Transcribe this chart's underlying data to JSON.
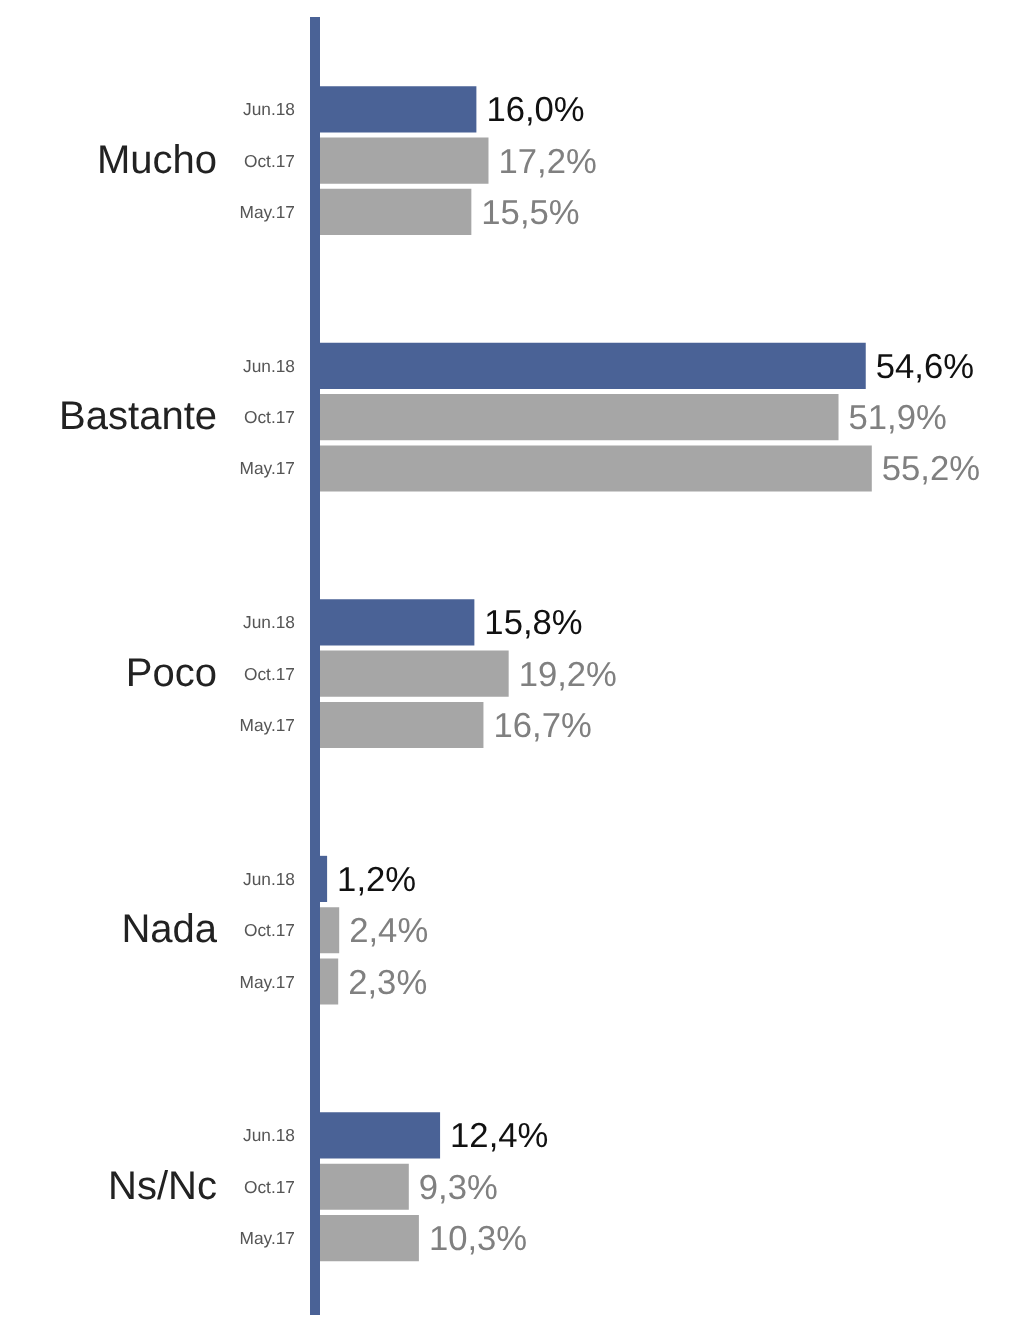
{
  "chart_data": {
    "type": "bar",
    "orientation": "horizontal",
    "categories": [
      "Mucho",
      "Bastante",
      "Poco",
      "Nada",
      "Ns/Nc"
    ],
    "series": [
      {
        "name": "Jun.18",
        "color": "#4a6296",
        "values": [
          16.0,
          54.6,
          15.8,
          1.2,
          12.4
        ],
        "value_labels": [
          "16,0%",
          "54,6%",
          "15,8%",
          "1,2%",
          "12,4%"
        ]
      },
      {
        "name": "Oct.17",
        "color": "#a6a6a6",
        "values": [
          17.2,
          51.9,
          19.2,
          2.4,
          9.3
        ],
        "value_labels": [
          "17,2%",
          "51,9%",
          "19,2%",
          "2,4%",
          "9,3%"
        ]
      },
      {
        "name": "May.17",
        "color": "#a6a6a6",
        "values": [
          15.5,
          55.2,
          16.7,
          2.3,
          10.3
        ],
        "value_labels": [
          "15,5%",
          "55,2%",
          "16,7%",
          "2,3%",
          "10,3%"
        ]
      }
    ],
    "tick_labels": "y",
    "grid": false,
    "legend": false
  }
}
